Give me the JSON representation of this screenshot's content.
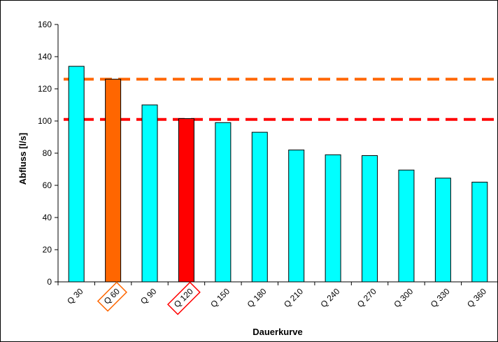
{
  "chart_data": {
    "type": "bar",
    "xlabel": "Dauerkurve",
    "ylabel": "Abfluss [l/s]",
    "ylim": [
      0,
      160
    ],
    "yticks": [
      0,
      20,
      40,
      60,
      80,
      100,
      120,
      140,
      160
    ],
    "grid": false,
    "categories": [
      "Q 30",
      "Q 60",
      "Q 90",
      "Q 120",
      "Q 150",
      "Q 180",
      "Q 210",
      "Q 240",
      "Q 270",
      "Q 300",
      "Q 330",
      "Q 360"
    ],
    "values": [
      134,
      126,
      110,
      101.5,
      99,
      93,
      82,
      79,
      78.5,
      69.5,
      64.5,
      62
    ],
    "bar_colors": [
      "#00FFFF",
      "#FF6600",
      "#00FFFF",
      "#FF0000",
      "#00FFFF",
      "#00FFFF",
      "#00FFFF",
      "#00FFFF",
      "#00FFFF",
      "#00FFFF",
      "#00FFFF",
      "#00FFFF"
    ],
    "highlighted_labels": [
      {
        "category": "Q 60",
        "color": "#FF6600"
      },
      {
        "category": "Q 120",
        "color": "#FF0000"
      }
    ],
    "reference_lines": [
      {
        "value": 126,
        "color": "#FF6600",
        "style": "dashed"
      },
      {
        "value": 101,
        "color": "#FF0000",
        "style": "dashed"
      }
    ]
  }
}
